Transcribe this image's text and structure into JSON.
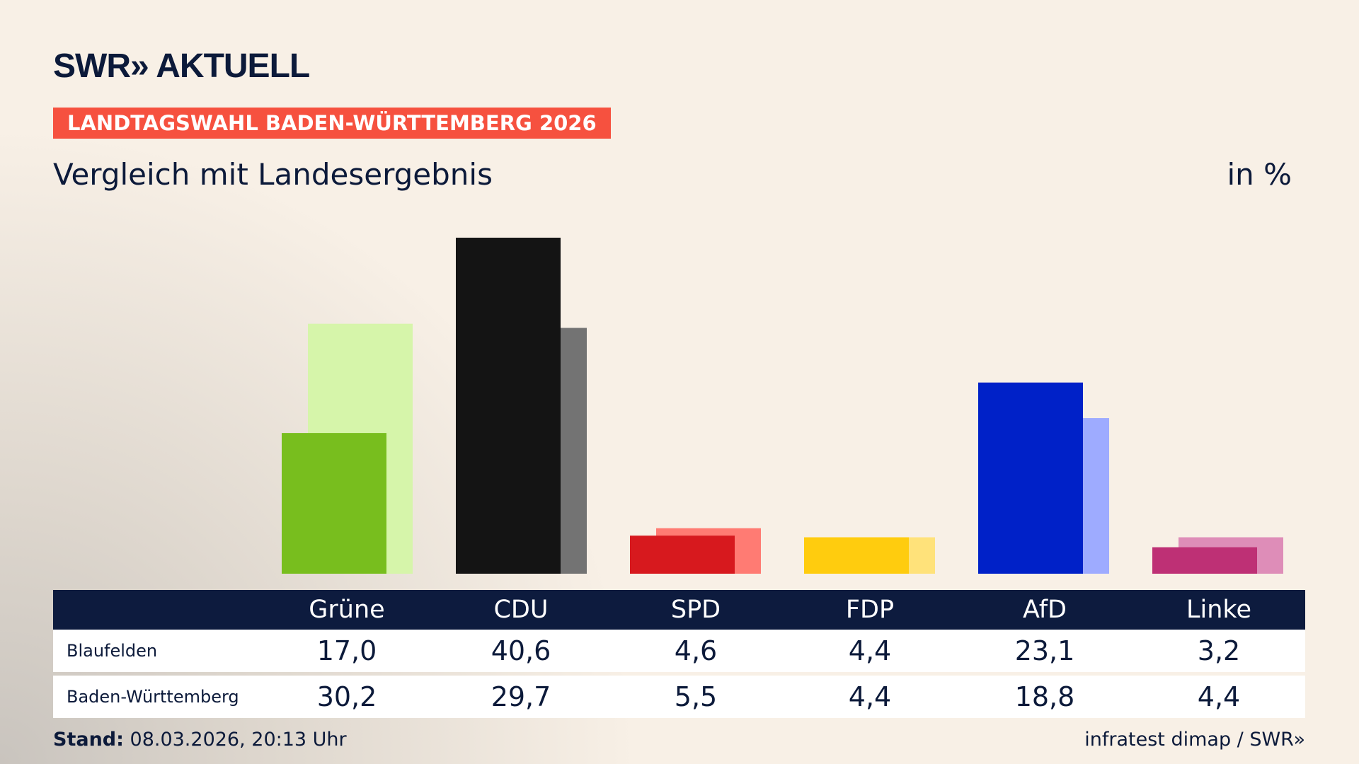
{
  "header": {
    "logo": "SWR» AKTUELL",
    "tag": "LANDTAGSWAHL BADEN-WÜRTTEMBERG 2026",
    "subtitle": "Vergleich mit Landesergebnis",
    "unit": "in %"
  },
  "chart_data": {
    "type": "bar",
    "categories": [
      "Grüne",
      "CDU",
      "SPD",
      "FDP",
      "AfD",
      "Linke"
    ],
    "series": [
      {
        "name": "Blaufelden",
        "values": [
          17.0,
          40.6,
          4.6,
          4.4,
          23.1,
          3.2
        ],
        "colors": [
          "#78BE1E",
          "#141414",
          "#D7191E",
          "#FFCC0E",
          "#0021C8",
          "#BE3075"
        ]
      },
      {
        "name": "Baden-Württemberg",
        "values": [
          30.2,
          29.7,
          5.5,
          4.4,
          18.8,
          4.4
        ],
        "colors": [
          "#D6F5AA",
          "#737373",
          "#FF7B73",
          "#FFE27A",
          "#9EABFF",
          "#DE8DB8"
        ]
      }
    ],
    "ylim": [
      0,
      40.6
    ],
    "grid": false
  },
  "table": {
    "headers": [
      "Grüne",
      "CDU",
      "SPD",
      "FDP",
      "AfD",
      "Linke"
    ],
    "rows": [
      {
        "label": "Blaufelden",
        "values": [
          "17,0",
          "40,6",
          "4,6",
          "4,4",
          "23,1",
          "3,2"
        ]
      },
      {
        "label": "Baden-Württemberg",
        "values": [
          "30,2",
          "29,7",
          "5,5",
          "4,4",
          "18,8",
          "4,4"
        ]
      }
    ]
  },
  "footer": {
    "stand_label": "Stand:",
    "stand_value": "08.03.2026, 20:13 Uhr",
    "source": "infratest dimap / SWR»"
  }
}
